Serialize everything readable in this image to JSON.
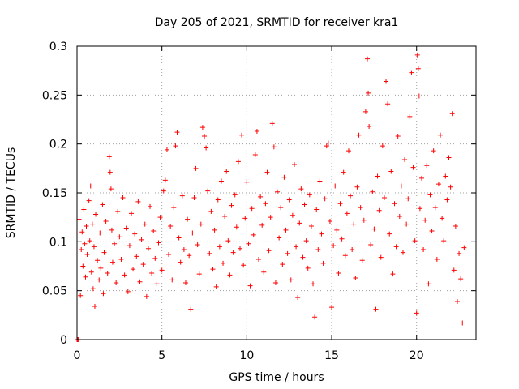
{
  "chart_data": {
    "type": "scatter",
    "title": "Day 205 of 2021, SRMTID for receiver kra1",
    "xlabel": "GPS time / hours",
    "ylabel": "SRMTID / TECUs",
    "xlim": [
      0,
      23.5
    ],
    "ylim": [
      0,
      0.3
    ],
    "x_ticks": [
      0,
      5,
      10,
      15,
      20
    ],
    "x_tick_labels": [
      "0",
      "5",
      "10",
      "15",
      "20"
    ],
    "y_ticks": [
      0,
      0.05,
      0.1,
      0.15,
      0.2,
      0.25,
      0.3
    ],
    "y_tick_labels": [
      "0",
      "0.05",
      "0.1",
      "0.15",
      "0.2",
      "0.25",
      "0.3"
    ],
    "grid": true,
    "marker": "plus",
    "series_color": "#ff0000",
    "series": [
      {
        "name": "SRMTID",
        "points": [
          [
            0.0,
            0.0
          ],
          [
            0.05,
            0.0
          ],
          [
            0.1,
            0.0
          ],
          [
            0.12,
            0.123
          ],
          [
            0.2,
            0.045
          ],
          [
            0.25,
            0.092
          ],
          [
            0.3,
            0.11
          ],
          [
            0.35,
            0.075
          ],
          [
            0.4,
            0.133
          ],
          [
            0.45,
            0.098
          ],
          [
            0.5,
            0.064
          ],
          [
            0.55,
            0.116
          ],
          [
            0.6,
            0.087
          ],
          [
            0.7,
            0.142
          ],
          [
            0.75,
            0.101
          ],
          [
            0.8,
            0.157
          ],
          [
            0.85,
            0.069
          ],
          [
            0.9,
            0.118
          ],
          [
            0.95,
            0.052
          ],
          [
            1.0,
            0.095
          ],
          [
            1.05,
            0.034
          ],
          [
            1.1,
            0.128
          ],
          [
            1.2,
            0.081
          ],
          [
            1.3,
            0.061
          ],
          [
            1.35,
            0.109
          ],
          [
            1.4,
            0.073
          ],
          [
            1.5,
            0.138
          ],
          [
            1.55,
            0.047
          ],
          [
            1.6,
            0.089
          ],
          [
            1.7,
            0.121
          ],
          [
            1.8,
            0.068
          ],
          [
            1.9,
            0.187
          ],
          [
            1.95,
            0.171
          ],
          [
            2.0,
            0.154
          ],
          [
            2.05,
            0.112
          ],
          [
            2.1,
            0.079
          ],
          [
            2.2,
            0.098
          ],
          [
            2.3,
            0.058
          ],
          [
            2.4,
            0.131
          ],
          [
            2.5,
            0.105
          ],
          [
            2.6,
            0.082
          ],
          [
            2.7,
            0.145
          ],
          [
            2.8,
            0.066
          ],
          [
            2.9,
            0.114
          ],
          [
            3.0,
            0.049
          ],
          [
            3.1,
            0.096
          ],
          [
            3.2,
            0.129
          ],
          [
            3.3,
            0.072
          ],
          [
            3.4,
            0.108
          ],
          [
            3.5,
            0.085
          ],
          [
            3.6,
            0.141
          ],
          [
            3.7,
            0.059
          ],
          [
            3.8,
            0.102
          ],
          [
            3.9,
            0.077
          ],
          [
            4.0,
            0.118
          ],
          [
            4.1,
            0.044
          ],
          [
            4.2,
            0.093
          ],
          [
            4.3,
            0.136
          ],
          [
            4.4,
            0.068
          ],
          [
            4.5,
            0.111
          ],
          [
            4.6,
            0.083
          ],
          [
            4.7,
            0.057
          ],
          [
            4.8,
            0.099
          ],
          [
            4.9,
            0.125
          ],
          [
            5.0,
            0.071
          ],
          [
            5.1,
            0.152
          ],
          [
            5.2,
            0.163
          ],
          [
            5.3,
            0.194
          ],
          [
            5.4,
            0.087
          ],
          [
            5.5,
            0.116
          ],
          [
            5.6,
            0.061
          ],
          [
            5.7,
            0.135
          ],
          [
            5.8,
            0.198
          ],
          [
            5.9,
            0.212
          ],
          [
            6.0,
            0.104
          ],
          [
            6.1,
            0.079
          ],
          [
            6.2,
            0.147
          ],
          [
            6.3,
            0.092
          ],
          [
            6.4,
            0.058
          ],
          [
            6.5,
            0.123
          ],
          [
            6.6,
            0.086
          ],
          [
            6.7,
            0.031
          ],
          [
            6.8,
            0.109
          ],
          [
            6.9,
            0.145
          ],
          [
            7.0,
            0.175
          ],
          [
            7.1,
            0.097
          ],
          [
            7.2,
            0.067
          ],
          [
            7.3,
            0.118
          ],
          [
            7.4,
            0.217
          ],
          [
            7.5,
            0.208
          ],
          [
            7.6,
            0.196
          ],
          [
            7.7,
            0.152
          ],
          [
            7.8,
            0.088
          ],
          [
            7.9,
            0.131
          ],
          [
            8.0,
            0.072
          ],
          [
            8.1,
            0.112
          ],
          [
            8.2,
            0.054
          ],
          [
            8.3,
            0.143
          ],
          [
            8.4,
            0.095
          ],
          [
            8.5,
            0.162
          ],
          [
            8.6,
            0.078
          ],
          [
            8.7,
            0.126
          ],
          [
            8.8,
            0.172
          ],
          [
            8.9,
            0.101
          ],
          [
            9.0,
            0.066
          ],
          [
            9.1,
            0.137
          ],
          [
            9.2,
            0.089
          ],
          [
            9.3,
            0.148
          ],
          [
            9.4,
            0.115
          ],
          [
            9.5,
            0.182
          ],
          [
            9.6,
            0.093
          ],
          [
            9.7,
            0.209
          ],
          [
            9.8,
            0.076
          ],
          [
            9.9,
            0.124
          ],
          [
            10.0,
            0.161
          ],
          [
            10.1,
            0.098
          ],
          [
            10.2,
            0.055
          ],
          [
            10.3,
            0.134
          ],
          [
            10.4,
            0.107
          ],
          [
            10.5,
            0.189
          ],
          [
            10.6,
            0.213
          ],
          [
            10.7,
            0.082
          ],
          [
            10.8,
            0.146
          ],
          [
            10.9,
            0.117
          ],
          [
            11.0,
            0.069
          ],
          [
            11.1,
            0.139
          ],
          [
            11.2,
            0.171
          ],
          [
            11.3,
            0.091
          ],
          [
            11.4,
            0.125
          ],
          [
            11.5,
            0.221
          ],
          [
            11.6,
            0.197
          ],
          [
            11.7,
            0.058
          ],
          [
            11.8,
            0.151
          ],
          [
            11.9,
            0.104
          ],
          [
            12.0,
            0.135
          ],
          [
            12.1,
            0.077
          ],
          [
            12.2,
            0.166
          ],
          [
            12.3,
            0.112
          ],
          [
            12.4,
            0.088
          ],
          [
            12.5,
            0.143
          ],
          [
            12.6,
            0.061
          ],
          [
            12.7,
            0.127
          ],
          [
            12.8,
            0.179
          ],
          [
            12.9,
            0.095
          ],
          [
            13.0,
            0.043
          ],
          [
            13.1,
            0.119
          ],
          [
            13.2,
            0.154
          ],
          [
            13.3,
            0.084
          ],
          [
            13.4,
            0.138
          ],
          [
            13.5,
            0.101
          ],
          [
            13.6,
            0.073
          ],
          [
            13.7,
            0.148
          ],
          [
            13.8,
            0.116
          ],
          [
            13.9,
            0.057
          ],
          [
            14.0,
            0.023
          ],
          [
            14.1,
            0.133
          ],
          [
            14.2,
            0.092
          ],
          [
            14.3,
            0.162
          ],
          [
            14.4,
            0.108
          ],
          [
            14.5,
            0.078
          ],
          [
            14.6,
            0.144
          ],
          [
            14.7,
            0.198
          ],
          [
            14.8,
            0.201
          ],
          [
            14.9,
            0.121
          ],
          [
            15.0,
            0.033
          ],
          [
            15.1,
            0.096
          ],
          [
            15.2,
            0.157
          ],
          [
            15.3,
            0.112
          ],
          [
            15.4,
            0.068
          ],
          [
            15.5,
            0.139
          ],
          [
            15.6,
            0.103
          ],
          [
            15.7,
            0.171
          ],
          [
            15.8,
            0.086
          ],
          [
            15.9,
            0.129
          ],
          [
            16.0,
            0.193
          ],
          [
            16.1,
            0.147
          ],
          [
            16.2,
            0.092
          ],
          [
            16.3,
            0.118
          ],
          [
            16.4,
            0.063
          ],
          [
            16.5,
            0.156
          ],
          [
            16.6,
            0.209
          ],
          [
            16.7,
            0.135
          ],
          [
            16.8,
            0.081
          ],
          [
            16.9,
            0.122
          ],
          [
            17.0,
            0.233
          ],
          [
            17.1,
            0.287
          ],
          [
            17.15,
            0.252
          ],
          [
            17.2,
            0.218
          ],
          [
            17.3,
            0.097
          ],
          [
            17.4,
            0.151
          ],
          [
            17.5,
            0.113
          ],
          [
            17.6,
            0.031
          ],
          [
            17.7,
            0.167
          ],
          [
            17.8,
            0.132
          ],
          [
            17.9,
            0.084
          ],
          [
            18.0,
            0.198
          ],
          [
            18.1,
            0.145
          ],
          [
            18.2,
            0.264
          ],
          [
            18.3,
            0.241
          ],
          [
            18.4,
            0.108
          ],
          [
            18.5,
            0.172
          ],
          [
            18.6,
            0.067
          ],
          [
            18.7,
            0.139
          ],
          [
            18.8,
            0.095
          ],
          [
            18.9,
            0.208
          ],
          [
            19.0,
            0.126
          ],
          [
            19.1,
            0.157
          ],
          [
            19.2,
            0.089
          ],
          [
            19.3,
            0.184
          ],
          [
            19.4,
            0.118
          ],
          [
            19.5,
            0.144
          ],
          [
            19.6,
            0.228
          ],
          [
            19.7,
            0.273
          ],
          [
            19.8,
            0.176
          ],
          [
            19.9,
            0.101
          ],
          [
            20.0,
            0.027
          ],
          [
            20.05,
            0.291
          ],
          [
            20.1,
            0.277
          ],
          [
            20.15,
            0.249
          ],
          [
            20.2,
            0.134
          ],
          [
            20.3,
            0.165
          ],
          [
            20.4,
            0.092
          ],
          [
            20.5,
            0.122
          ],
          [
            20.6,
            0.178
          ],
          [
            20.7,
            0.057
          ],
          [
            20.8,
            0.148
          ],
          [
            20.9,
            0.111
          ],
          [
            21.0,
            0.193
          ],
          [
            21.1,
            0.135
          ],
          [
            21.2,
            0.082
          ],
          [
            21.3,
            0.159
          ],
          [
            21.4,
            0.209
          ],
          [
            21.5,
            0.124
          ],
          [
            21.6,
            0.101
          ],
          [
            21.7,
            0.167
          ],
          [
            21.8,
            0.143
          ],
          [
            21.9,
            0.186
          ],
          [
            22.0,
            0.156
          ],
          [
            22.1,
            0.231
          ],
          [
            22.2,
            0.071
          ],
          [
            22.3,
            0.116
          ],
          [
            22.4,
            0.039
          ],
          [
            22.5,
            0.088
          ],
          [
            22.6,
            0.062
          ],
          [
            22.7,
            0.017
          ],
          [
            22.8,
            0.094
          ]
        ]
      }
    ]
  }
}
